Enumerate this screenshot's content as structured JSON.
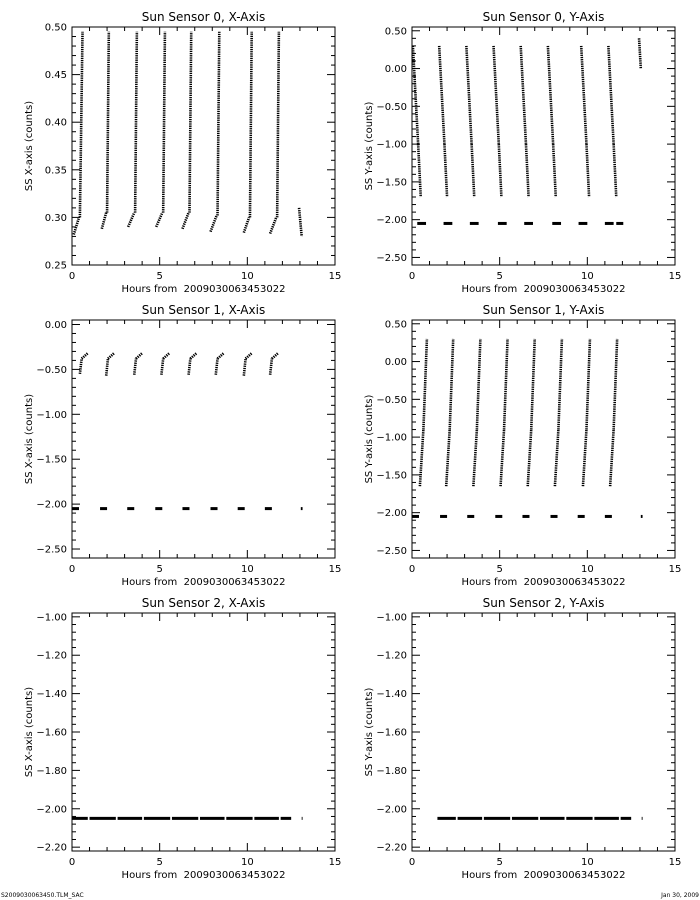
{
  "footer": {
    "left": "S2009030063450.TLM_SAC",
    "right": "Jan 30, 2009"
  },
  "chart_data": [
    {
      "type": "scatter",
      "title": "Sun Sensor 0, X-Axis",
      "xlabel": "Hours from  2009030063453022",
      "ylabel": "SS X-axis (counts)",
      "xlim": [
        0,
        15
      ],
      "ylim": [
        0.25,
        0.5
      ],
      "xticks": [
        0,
        5,
        10,
        15
      ],
      "yticks": [
        0.25,
        0.3,
        0.35,
        0.4,
        0.45,
        0.5
      ],
      "ytick_decimals": 2,
      "segments": [
        {
          "x": [
            0.1,
            0.4
          ],
          "y": [
            0.282,
            0.3
          ]
        },
        {
          "x": [
            0.45,
            0.6
          ],
          "y": [
            0.3,
            0.495
          ]
        },
        {
          "x": [
            1.7,
            1.95
          ],
          "y": [
            0.288,
            0.305
          ]
        },
        {
          "x": [
            2.0,
            2.1
          ],
          "y": [
            0.305,
            0.495
          ]
        },
        {
          "x": [
            3.2,
            3.55
          ],
          "y": [
            0.29,
            0.305
          ]
        },
        {
          "x": [
            3.6,
            3.7
          ],
          "y": [
            0.305,
            0.495
          ]
        },
        {
          "x": [
            4.8,
            5.15
          ],
          "y": [
            0.29,
            0.305
          ]
        },
        {
          "x": [
            5.2,
            5.3
          ],
          "y": [
            0.305,
            0.495
          ]
        },
        {
          "x": [
            6.3,
            6.65
          ],
          "y": [
            0.288,
            0.305
          ]
        },
        {
          "x": [
            6.7,
            6.8
          ],
          "y": [
            0.305,
            0.495
          ]
        },
        {
          "x": [
            7.9,
            8.25
          ],
          "y": [
            0.285,
            0.302
          ]
        },
        {
          "x": [
            8.3,
            8.4
          ],
          "y": [
            0.302,
            0.495
          ]
        },
        {
          "x": [
            9.8,
            10.1
          ],
          "y": [
            0.284,
            0.3
          ]
        },
        {
          "x": [
            10.15,
            10.25
          ],
          "y": [
            0.3,
            0.495
          ]
        },
        {
          "x": [
            11.3,
            11.65
          ],
          "y": [
            0.283,
            0.3
          ]
        },
        {
          "x": [
            11.7,
            11.8
          ],
          "y": [
            0.3,
            0.495
          ]
        },
        {
          "x": [
            12.95,
            13.1
          ],
          "y": [
            0.31,
            0.28
          ]
        }
      ]
    },
    {
      "type": "scatter",
      "title": "Sun Sensor 0, Y-Axis",
      "xlabel": "Hours from  2009030063453022",
      "ylabel": "SS Y-axis (counts)",
      "xlim": [
        0,
        15
      ],
      "ylim": [
        -2.6,
        0.55
      ],
      "xticks": [
        0,
        5,
        10,
        15
      ],
      "yticks": [
        -2.5,
        -2.0,
        -1.5,
        -1.0,
        -0.5,
        0.0,
        0.5
      ],
      "ytick_decimals": 2,
      "segments": [
        {
          "x": [
            0.05,
            0.35
          ],
          "y": [
            0.3,
            -1.0
          ]
        },
        {
          "x": [
            0.35,
            0.5
          ],
          "y": [
            -1.0,
            -1.7
          ]
        },
        {
          "x": [
            1.55,
            1.85
          ],
          "y": [
            0.3,
            -1.0
          ]
        },
        {
          "x": [
            1.85,
            2.0
          ],
          "y": [
            -1.0,
            -1.7
          ]
        },
        {
          "x": [
            3.1,
            3.4
          ],
          "y": [
            0.3,
            -1.0
          ]
        },
        {
          "x": [
            3.4,
            3.55
          ],
          "y": [
            -1.0,
            -1.7
          ]
        },
        {
          "x": [
            4.65,
            4.95
          ],
          "y": [
            0.3,
            -1.0
          ]
        },
        {
          "x": [
            4.95,
            5.1
          ],
          "y": [
            -1.0,
            -1.7
          ]
        },
        {
          "x": [
            6.2,
            6.5
          ],
          "y": [
            0.3,
            -1.0
          ]
        },
        {
          "x": [
            6.5,
            6.65
          ],
          "y": [
            -1.0,
            -1.7
          ]
        },
        {
          "x": [
            7.75,
            8.05
          ],
          "y": [
            0.3,
            -1.0
          ]
        },
        {
          "x": [
            8.05,
            8.2
          ],
          "y": [
            -1.0,
            -1.7
          ]
        },
        {
          "x": [
            9.65,
            9.95
          ],
          "y": [
            0.3,
            -1.0
          ]
        },
        {
          "x": [
            9.95,
            10.1
          ],
          "y": [
            -1.0,
            -1.7
          ]
        },
        {
          "x": [
            11.2,
            11.5
          ],
          "y": [
            0.3,
            -1.0
          ]
        },
        {
          "x": [
            11.5,
            11.65
          ],
          "y": [
            -1.0,
            -1.7
          ]
        },
        {
          "x": [
            12.95,
            13.05
          ],
          "y": [
            0.4,
            0.0
          ]
        }
      ],
      "dashes": {
        "y": -2.05,
        "x": [
          [
            0.3,
            0.8
          ],
          [
            1.8,
            2.3
          ],
          [
            3.3,
            3.8
          ],
          [
            4.9,
            5.4
          ],
          [
            6.4,
            6.9
          ],
          [
            8.0,
            8.5
          ],
          [
            9.5,
            10.0
          ],
          [
            11.0,
            11.5
          ],
          [
            11.65,
            12.05
          ]
        ]
      }
    },
    {
      "type": "scatter",
      "title": "Sun Sensor 1, X-Axis",
      "xlabel": "Hours from  2009030063453022",
      "ylabel": "SS X-axis (counts)",
      "xlim": [
        0,
        15
      ],
      "ylim": [
        -2.6,
        0.05
      ],
      "xticks": [
        0,
        5,
        10,
        15
      ],
      "yticks": [
        -2.5,
        -2.0,
        -1.5,
        -1.0,
        -0.5,
        0.0
      ],
      "ytick_decimals": 2,
      "segments": [
        {
          "x": [
            0.45,
            0.55
          ],
          "y": [
            -0.55,
            -0.38
          ]
        },
        {
          "x": [
            0.55,
            0.9
          ],
          "y": [
            -0.38,
            -0.32
          ]
        },
        {
          "x": [
            1.95,
            2.05
          ],
          "y": [
            -0.57,
            -0.38
          ]
        },
        {
          "x": [
            2.05,
            2.4
          ],
          "y": [
            -0.38,
            -0.32
          ]
        },
        {
          "x": [
            3.55,
            3.65
          ],
          "y": [
            -0.56,
            -0.38
          ]
        },
        {
          "x": [
            3.65,
            4.0
          ],
          "y": [
            -0.38,
            -0.32
          ]
        },
        {
          "x": [
            5.1,
            5.2
          ],
          "y": [
            -0.56,
            -0.38
          ]
        },
        {
          "x": [
            5.2,
            5.55
          ],
          "y": [
            -0.38,
            -0.32
          ]
        },
        {
          "x": [
            6.65,
            6.75
          ],
          "y": [
            -0.56,
            -0.38
          ]
        },
        {
          "x": [
            6.75,
            7.1
          ],
          "y": [
            -0.38,
            -0.32
          ]
        },
        {
          "x": [
            8.2,
            8.3
          ],
          "y": [
            -0.56,
            -0.38
          ]
        },
        {
          "x": [
            8.3,
            8.65
          ],
          "y": [
            -0.38,
            -0.32
          ]
        },
        {
          "x": [
            9.8,
            9.9
          ],
          "y": [
            -0.57,
            -0.38
          ]
        },
        {
          "x": [
            9.9,
            10.25
          ],
          "y": [
            -0.38,
            -0.32
          ]
        },
        {
          "x": [
            11.3,
            11.4
          ],
          "y": [
            -0.56,
            -0.38
          ]
        },
        {
          "x": [
            11.4,
            11.75
          ],
          "y": [
            -0.38,
            -0.32
          ]
        }
      ],
      "dashes": {
        "y": -2.05,
        "x": [
          [
            0.0,
            0.4
          ],
          [
            1.6,
            2.0
          ],
          [
            3.15,
            3.55
          ],
          [
            4.75,
            5.15
          ],
          [
            6.3,
            6.7
          ],
          [
            7.9,
            8.3
          ],
          [
            9.45,
            9.85
          ],
          [
            11.0,
            11.4
          ],
          [
            13.05,
            13.15
          ]
        ]
      }
    },
    {
      "type": "scatter",
      "title": "Sun Sensor 1, Y-Axis",
      "xlabel": "Hours from  2009030063453022",
      "ylabel": "SS Y-axis (counts)",
      "xlim": [
        0,
        15
      ],
      "ylim": [
        -2.6,
        0.55
      ],
      "xticks": [
        0,
        5,
        10,
        15
      ],
      "yticks": [
        -2.5,
        -2.0,
        -1.5,
        -1.0,
        -0.5,
        0.0,
        0.5
      ],
      "ytick_decimals": 2,
      "segments": [
        {
          "x": [
            0.45,
            0.65
          ],
          "y": [
            -1.65,
            -0.9
          ]
        },
        {
          "x": [
            0.65,
            0.85
          ],
          "y": [
            -0.9,
            0.3
          ]
        },
        {
          "x": [
            1.95,
            2.15
          ],
          "y": [
            -1.65,
            -0.9
          ]
        },
        {
          "x": [
            2.15,
            2.35
          ],
          "y": [
            -0.9,
            0.3
          ]
        },
        {
          "x": [
            3.5,
            3.7
          ],
          "y": [
            -1.65,
            -0.9
          ]
        },
        {
          "x": [
            3.7,
            3.9
          ],
          "y": [
            -0.9,
            0.3
          ]
        },
        {
          "x": [
            5.05,
            5.25
          ],
          "y": [
            -1.65,
            -0.9
          ]
        },
        {
          "x": [
            5.25,
            5.45
          ],
          "y": [
            -0.9,
            0.3
          ]
        },
        {
          "x": [
            6.6,
            6.8
          ],
          "y": [
            -1.65,
            -0.9
          ]
        },
        {
          "x": [
            6.8,
            7.0
          ],
          "y": [
            -0.9,
            0.3
          ]
        },
        {
          "x": [
            8.15,
            8.35
          ],
          "y": [
            -1.65,
            -0.9
          ]
        },
        {
          "x": [
            8.35,
            8.55
          ],
          "y": [
            -0.9,
            0.3
          ]
        },
        {
          "x": [
            9.75,
            9.95
          ],
          "y": [
            -1.65,
            -0.9
          ]
        },
        {
          "x": [
            9.95,
            10.15
          ],
          "y": [
            -0.9,
            0.3
          ]
        },
        {
          "x": [
            11.3,
            11.5
          ],
          "y": [
            -1.65,
            -0.9
          ]
        },
        {
          "x": [
            11.5,
            11.7
          ],
          "y": [
            -0.9,
            0.3
          ]
        }
      ],
      "dashes": {
        "y": -2.05,
        "x": [
          [
            0.0,
            0.4
          ],
          [
            1.6,
            2.0
          ],
          [
            3.15,
            3.55
          ],
          [
            4.75,
            5.15
          ],
          [
            6.3,
            6.7
          ],
          [
            7.9,
            8.3
          ],
          [
            9.45,
            9.85
          ],
          [
            11.0,
            11.4
          ],
          [
            13.05,
            13.15
          ]
        ]
      }
    },
    {
      "type": "scatter",
      "title": "Sun Sensor 2, X-Axis",
      "xlabel": "Hours from  2009030063453022",
      "ylabel": "SS X-axis (counts)",
      "xlim": [
        0,
        15
      ],
      "ylim": [
        -2.22,
        -0.98
      ],
      "xticks": [
        0,
        5,
        10,
        15
      ],
      "yticks": [
        -2.2,
        -2.0,
        -1.8,
        -1.6,
        -1.4,
        -1.2,
        -1.0
      ],
      "ytick_decimals": 2,
      "segments": [],
      "dashes": {
        "y": -2.05,
        "x": [
          [
            0.0,
            0.9
          ],
          [
            1.0,
            2.5
          ],
          [
            2.6,
            4.0
          ],
          [
            4.1,
            5.6
          ],
          [
            5.7,
            7.2
          ],
          [
            7.3,
            8.7
          ],
          [
            8.8,
            10.3
          ],
          [
            10.4,
            11.8
          ],
          [
            11.9,
            12.5
          ],
          [
            13.1,
            13.15
          ]
        ]
      }
    },
    {
      "type": "scatter",
      "title": "Sun Sensor 2, Y-Axis",
      "xlabel": "Hours from  2009030063453022",
      "ylabel": "SS Y-axis (counts)",
      "xlim": [
        0,
        15
      ],
      "ylim": [
        -2.22,
        -0.98
      ],
      "xticks": [
        0,
        5,
        10,
        15
      ],
      "yticks": [
        -2.2,
        -2.0,
        -1.8,
        -1.6,
        -1.4,
        -1.2,
        -1.0
      ],
      "ytick_decimals": 2,
      "segments": [],
      "dashes": {
        "y": -2.05,
        "x": [
          [
            1.45,
            2.5
          ],
          [
            2.6,
            4.0
          ],
          [
            4.1,
            5.6
          ],
          [
            5.7,
            7.2
          ],
          [
            7.3,
            8.7
          ],
          [
            8.8,
            10.3
          ],
          [
            10.4,
            11.8
          ],
          [
            11.9,
            12.5
          ],
          [
            13.1,
            13.15
          ]
        ]
      }
    }
  ]
}
